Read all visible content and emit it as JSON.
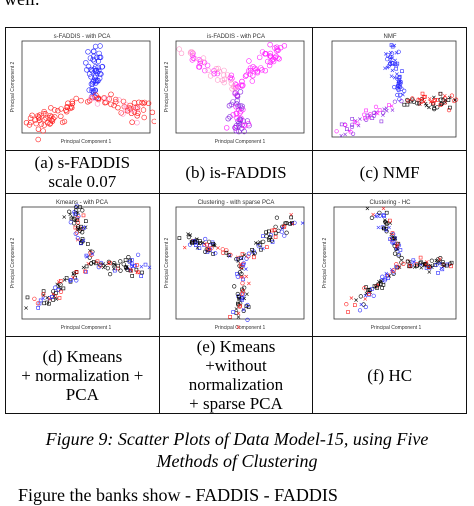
{
  "page": {
    "top_text": "well.",
    "bottom_text": "Figure the banks show - FADDIS - FADDIS"
  },
  "figure": {
    "caption_line1": "Figure 9: Scatter Plots of Data Model-15, using Five",
    "caption_line2": "Methods of Clustering",
    "panels": [
      {
        "plot_title": "s-FADDIS - with PCA",
        "xlabel": "Principal Component 1",
        "ylabel": "Principal Component 2",
        "caption_lines": [
          "(a) s-FADDIS",
          "scale 0.07"
        ]
      },
      {
        "plot_title": "is-FADDIS - with PCA",
        "xlabel": "Principal Component 1",
        "ylabel": "Principal Component 2",
        "caption_lines": [
          "(b) is-FADDIS"
        ]
      },
      {
        "plot_title": "NMF",
        "xlabel": "",
        "ylabel": "",
        "caption_lines": [
          "(c) NMF"
        ]
      },
      {
        "plot_title": "Kmeans - with PCA",
        "xlabel": "Principal Component 1",
        "ylabel": "Principal Component 2",
        "caption_lines": [
          "(d) Kmeans",
          "+ normalization +",
          "PCA"
        ]
      },
      {
        "plot_title": "Clustering - with sparse PCA",
        "xlabel": "Principal Component 1",
        "ylabel": "Principal Component 2",
        "caption_lines": [
          "(e) Kmeans",
          "+without",
          "normalization",
          "+ sparse PCA"
        ]
      },
      {
        "plot_title": "Clustering - HC",
        "xlabel": "Principal Component 1",
        "ylabel": "Principal Component 2",
        "caption_lines": [
          "(f) HC"
        ]
      }
    ]
  },
  "colors": {
    "blue": "#2a2aff",
    "red": "#ff2020",
    "magenta": "#ff22ff",
    "pink": "#ff99cc",
    "purple": "#8a2be2",
    "black": "#000000",
    "axis": "#333333"
  }
}
